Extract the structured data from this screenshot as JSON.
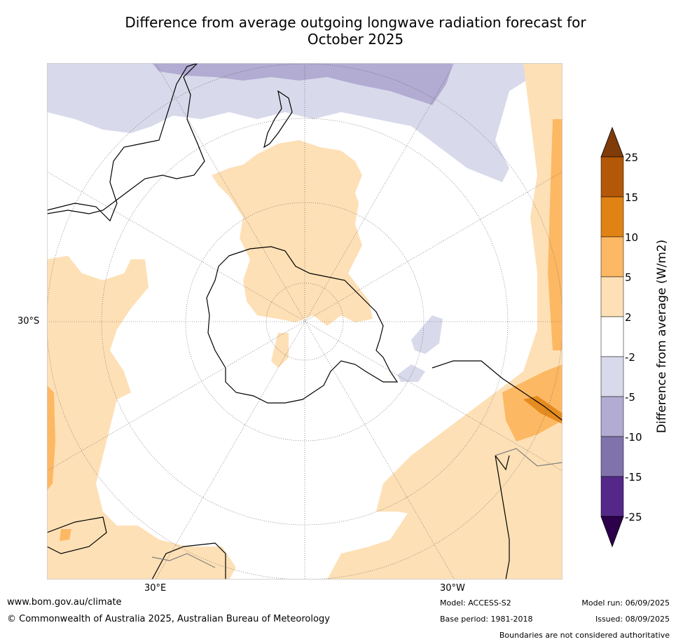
{
  "title_line1": "Difference from average outgoing longwave radiation forecast for",
  "title_line2": "October 2025",
  "map": {
    "lat_label": "30°S",
    "lon_label_east": "30°E",
    "lon_label_west": "30°W"
  },
  "colorbar": {
    "label": "Difference from average (W/m2)",
    "ticks": [
      "25",
      "15",
      "10",
      "5",
      "2",
      "-2",
      "-5",
      "-10",
      "-15",
      "-25"
    ],
    "colors": {
      "above_max": "#7f3b08",
      "15_25": "#b35806",
      "10_15": "#e08214",
      "5_10": "#fdb863",
      "2_5": "#fee0b6",
      "m2_2": "#ffffff",
      "m5_m2": "#d8daeb",
      "m10_m5": "#b2abd2",
      "m15_m10": "#8073ac",
      "m25_m15": "#542788",
      "below_min": "#2d004b"
    }
  },
  "footer": {
    "website": "www.bom.gov.au/climate",
    "copyright": "© Commonwealth of Australia 2025, Australian Bureau of Meteorology",
    "model": "Model: ACCESS-S2",
    "base_period": "Base period: 1981-2018",
    "model_run": "Model run: 06/09/2025",
    "issued": "Issued: 08/09/2025",
    "disclaimer": "Boundaries are not considered authoritative"
  }
}
